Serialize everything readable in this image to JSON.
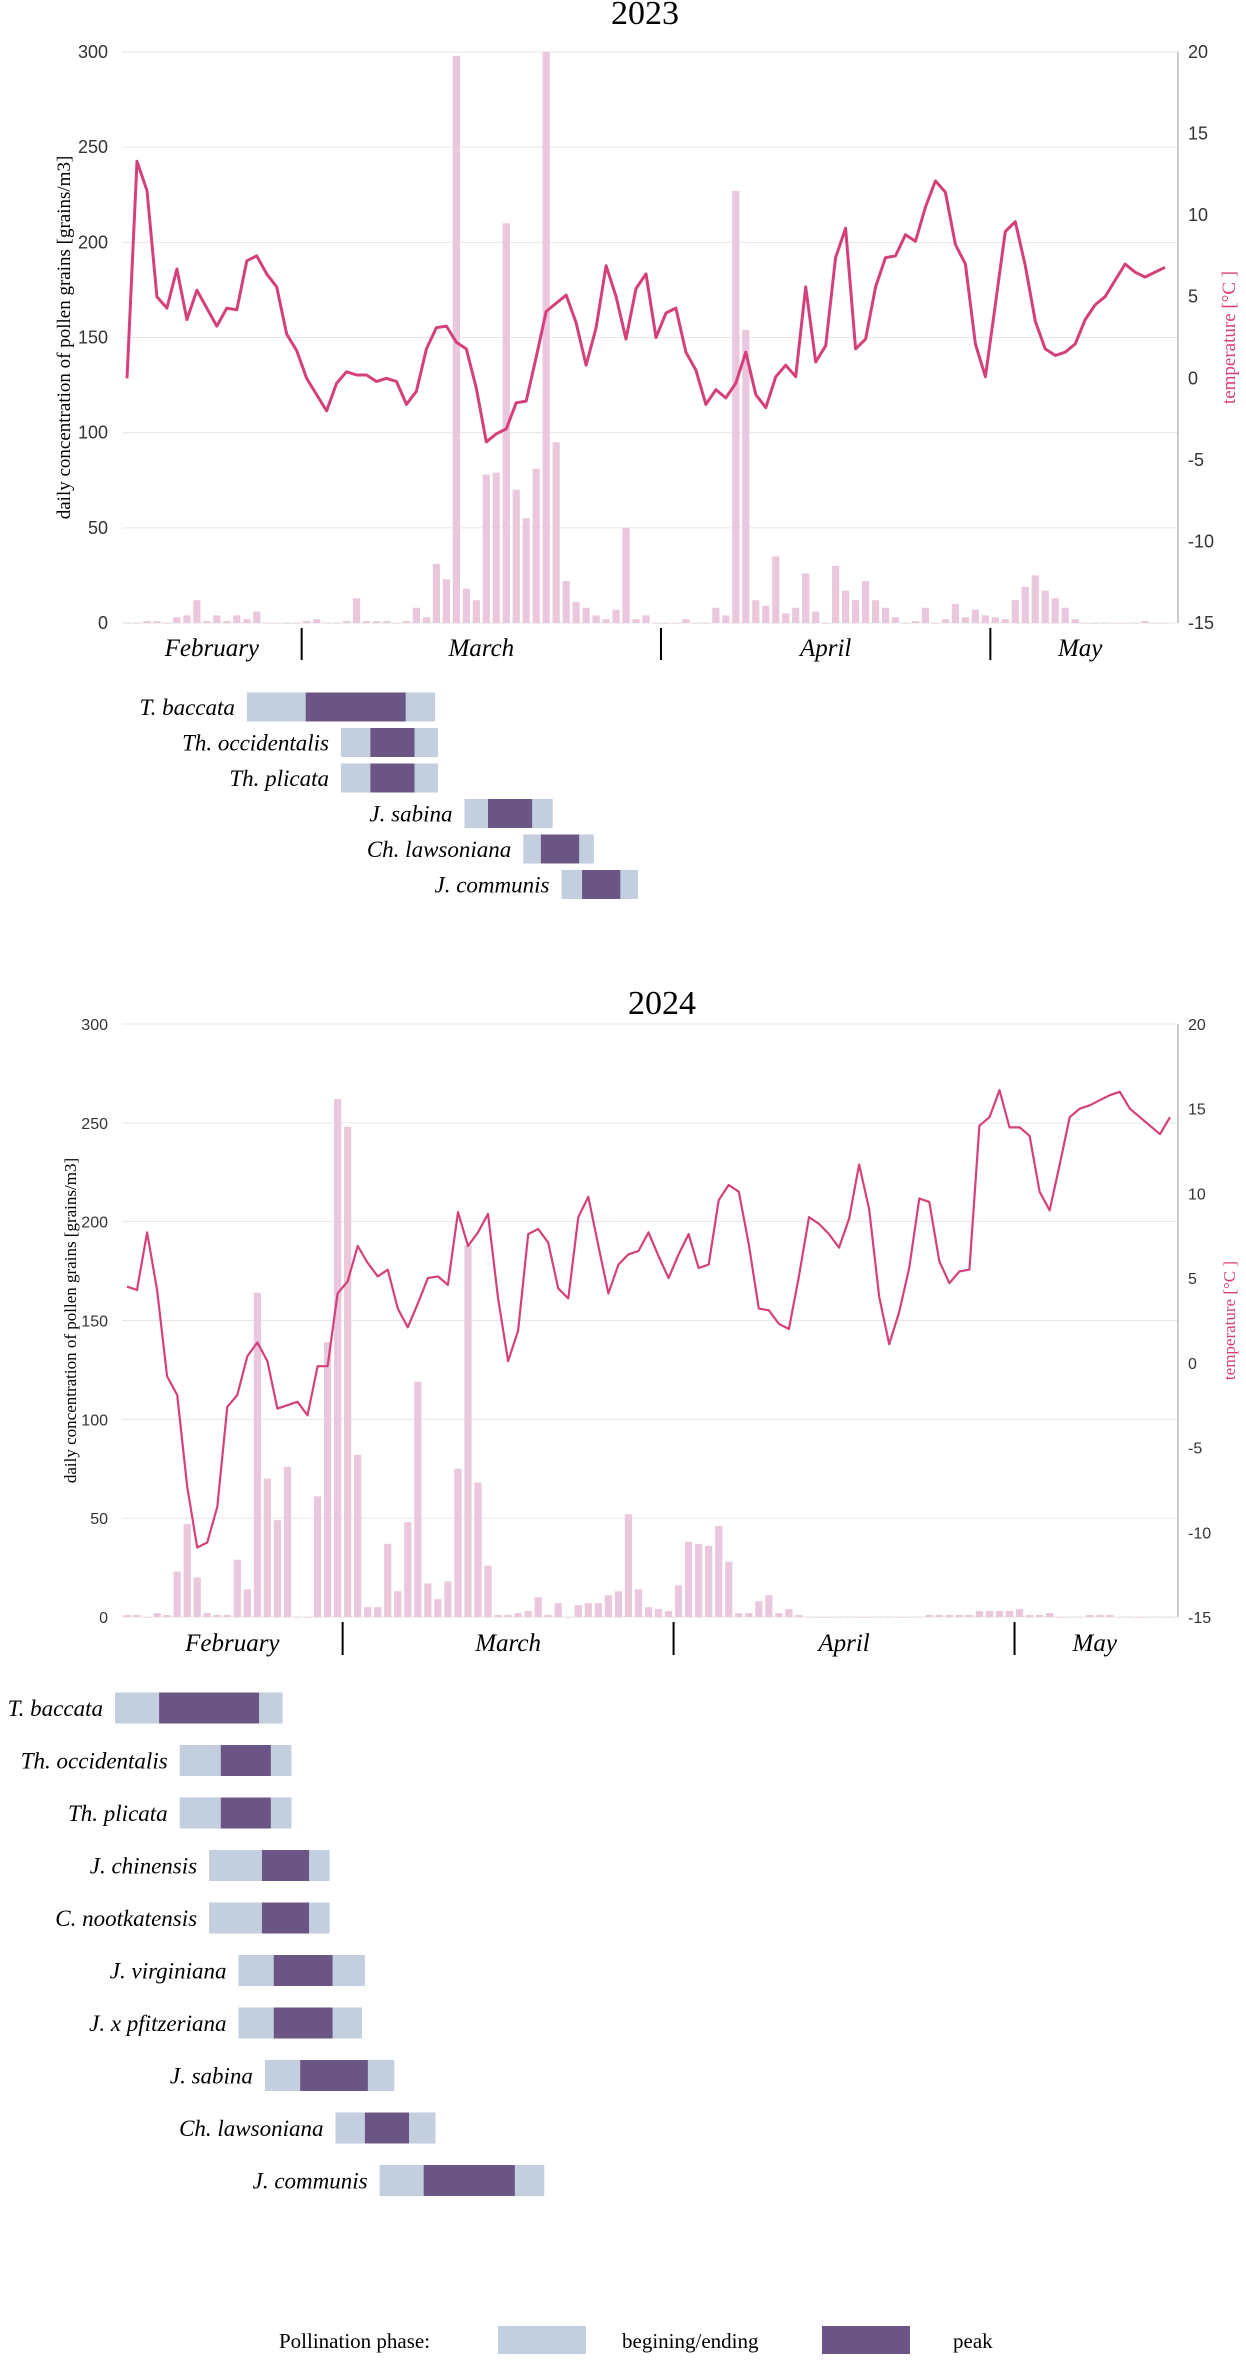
{
  "colors": {
    "bar": "#eac7dc",
    "line": "#d6407a",
    "phase_edge": "#c3cede",
    "phase_peak": "#6b5585",
    "grid": "#e6e6e6",
    "axis_text": "#333333",
    "temp_label": "#d6407a"
  },
  "legend": {
    "prefix": "Pollination phase:",
    "items": [
      {
        "label": "begining/ending",
        "color": "#c3cede"
      },
      {
        "label": "peak",
        "color": "#6b5585"
      }
    ]
  },
  "chart_data": [
    {
      "type": "bar+line",
      "title": "2023",
      "ylabel": "daily concentration of pollen grains [grains/m3]",
      "y2label": "temperature [°C ]",
      "ylim": [
        0,
        300
      ],
      "y2lim": [
        -15,
        20
      ],
      "yticks": [
        0,
        50,
        100,
        150,
        200,
        250,
        300
      ],
      "y2ticks": [
        -15,
        -10,
        -5,
        0,
        5,
        10,
        15,
        20
      ],
      "days": 105,
      "months": [
        {
          "name": "February",
          "start": 0,
          "end": 18
        },
        {
          "name": "March",
          "start": 18,
          "end": 54
        },
        {
          "name": "April",
          "start": 54,
          "end": 87
        },
        {
          "name": "May",
          "start": 87,
          "end": 105
        }
      ],
      "pollen": [
        0,
        0,
        1,
        1,
        0,
        3,
        4,
        12,
        1,
        4,
        1,
        4,
        2,
        6,
        0,
        0,
        0,
        0,
        1,
        2,
        0,
        0,
        1,
        13,
        1,
        1,
        1,
        0,
        1,
        8,
        3,
        31,
        23,
        298,
        18,
        12,
        78,
        79,
        210,
        70,
        55,
        81,
        300,
        95,
        22,
        11,
        8,
        4,
        2,
        7,
        50,
        2,
        4,
        0,
        0,
        0,
        2,
        0,
        0,
        8,
        4,
        227,
        154,
        12,
        9,
        35,
        5,
        8,
        26,
        6,
        0,
        30,
        17,
        12,
        22,
        12,
        8,
        3,
        0,
        1,
        8,
        0,
        2,
        10,
        3,
        7,
        4,
        3,
        2,
        12,
        19,
        25,
        17,
        13,
        8,
        2,
        0,
        0,
        0,
        0,
        0,
        0,
        1,
        0,
        0
      ],
      "temperature": [
        0,
        13.3,
        11.5,
        5,
        4.3,
        6.7,
        3.6,
        5.4,
        4.3,
        3.2,
        4.3,
        4.2,
        7.2,
        7.5,
        6.4,
        5.6,
        2.7,
        1.7,
        0,
        -1,
        -2,
        -0.3,
        0.4,
        0.2,
        0.2,
        -0.2,
        0,
        -0.2,
        -1.6,
        -0.8,
        1.8,
        3.1,
        3.2,
        2.2,
        1.8,
        -0.6,
        -3.9,
        -3.4,
        -3.1,
        -1.5,
        -1.4,
        1.3,
        4.1,
        4.6,
        5.1,
        3.4,
        0.8,
        3.1,
        6.9,
        5,
        2.4,
        5.5,
        6.4,
        2.5,
        4,
        4.3,
        1.6,
        0.5,
        -1.6,
        -0.7,
        -1.2,
        -0.3,
        1.6,
        -1,
        -1.8,
        0.1,
        0.8,
        0.1,
        5.6,
        1,
        2,
        7.4,
        9.2,
        1.8,
        2.4,
        5.6,
        7.4,
        7.5,
        8.8,
        8.4,
        10.5,
        12.1,
        11.4,
        8.2,
        7,
        2.1,
        0.1,
        4.5,
        9,
        9.6,
        6.9,
        3.5,
        1.8,
        1.4,
        1.6,
        2.1,
        3.6,
        4.5,
        5,
        6,
        7,
        6.5,
        6.2,
        6.5,
        6.8
      ],
      "species": [
        {
          "name": "T. baccata",
          "begin": 18,
          "peak_start": 38,
          "peak_end": 72,
          "end": 82
        },
        {
          "name": "Th. occidentalis",
          "begin": 50,
          "peak_start": 60,
          "peak_end": 75,
          "end": 83
        },
        {
          "name": "Th. plicata",
          "begin": 50,
          "peak_start": 60,
          "peak_end": 75,
          "end": 83
        },
        {
          "name": "J. sabina",
          "begin": 92,
          "peak_start": 100,
          "peak_end": 115,
          "end": 122
        },
        {
          "name": "Ch. lawsoniana",
          "begin": 112,
          "peak_start": 118,
          "peak_end": 131,
          "end": 136
        },
        {
          "name": "J. communis",
          "begin": 125,
          "peak_start": 132,
          "peak_end": 145,
          "end": 151
        }
      ]
    },
    {
      "type": "bar+line",
      "title": "2024",
      "ylabel": "daily concentration of pollen grains [grains/m3]",
      "y2label": "temperature [°C ]",
      "ylim": [
        0,
        300
      ],
      "y2lim": [
        -15,
        20
      ],
      "yticks": [
        0,
        50,
        100,
        150,
        200,
        250,
        300
      ],
      "y2ticks": [
        -15,
        -10,
        -5,
        0,
        5,
        10,
        15,
        20
      ],
      "days": 105,
      "months": [
        {
          "name": "February",
          "start": 0,
          "end": 22
        },
        {
          "name": "March",
          "start": 22,
          "end": 55
        },
        {
          "name": "April",
          "start": 55,
          "end": 89
        },
        {
          "name": "May",
          "start": 89,
          "end": 105
        }
      ],
      "pollen": [
        1,
        1,
        0,
        2,
        1,
        23,
        47,
        20,
        2,
        1,
        1,
        29,
        14,
        164,
        70,
        49,
        76,
        0,
        0,
        61,
        139,
        262,
        248,
        82,
        5,
        5,
        37,
        13,
        48,
        119,
        17,
        9,
        18,
        75,
        188,
        68,
        26,
        1,
        1,
        2,
        3,
        10,
        1,
        7,
        0,
        6,
        7,
        7,
        11,
        13,
        52,
        14,
        5,
        4,
        3,
        16,
        38,
        37,
        36,
        46,
        28,
        2,
        2,
        8,
        11,
        2,
        4,
        1,
        0,
        0,
        0,
        0,
        0,
        0,
        0,
        0,
        0,
        0,
        0,
        0,
        1,
        1,
        1,
        1,
        1,
        3,
        3,
        3,
        3,
        4,
        1,
        1,
        2,
        0,
        0,
        0,
        1,
        1,
        1,
        0,
        0,
        0,
        0,
        0,
        0
      ],
      "temperature": [
        4.5,
        4.3,
        7.7,
        4.3,
        -0.8,
        -1.9,
        -7.3,
        -10.9,
        -10.6,
        -8.5,
        -2.6,
        -1.9,
        0.4,
        1.2,
        0.1,
        -2.7,
        -2.5,
        -2.3,
        -3.1,
        -0.2,
        -0.2,
        4.1,
        4.8,
        6.9,
        5.9,
        5.1,
        5.5,
        3.2,
        2.1,
        3.5,
        5,
        5.1,
        4.6,
        8.9,
        6.9,
        7.7,
        8.8,
        3.8,
        0.1,
        1.9,
        7.6,
        7.9,
        7.1,
        4.4,
        3.8,
        8.6,
        9.8,
        6.9,
        4.1,
        5.8,
        6.4,
        6.6,
        7.7,
        6.3,
        5,
        6.4,
        7.6,
        5.6,
        5.8,
        9.6,
        10.5,
        10.1,
        7,
        3.2,
        3.1,
        2.3,
        2,
        5.1,
        8.6,
        8.2,
        7.6,
        6.8,
        8.5,
        11.7,
        9.1,
        3.9,
        1.1,
        3,
        5.6,
        9.7,
        9.5,
        6,
        4.7,
        5.4,
        5.5,
        14,
        14.5,
        16.1,
        13.9,
        13.9,
        13.4,
        10.1,
        9,
        11.7,
        14.5,
        15,
        15.2,
        15.5,
        15.8,
        16,
        15,
        14.5,
        14,
        13.5,
        14.5
      ],
      "species": [
        {
          "name": "T. baccata",
          "begin": 0,
          "peak_start": 15,
          "peak_end": 49,
          "end": 57
        },
        {
          "name": "Th. occidentalis",
          "begin": 22,
          "peak_start": 36,
          "peak_end": 53,
          "end": 60
        },
        {
          "name": "Th. plicata",
          "begin": 22,
          "peak_start": 36,
          "peak_end": 53,
          "end": 60
        },
        {
          "name": "J. chinensis",
          "begin": 32,
          "peak_start": 50,
          "peak_end": 66,
          "end": 73
        },
        {
          "name": "C. nootkatensis",
          "begin": 32,
          "peak_start": 50,
          "peak_end": 66,
          "end": 73
        },
        {
          "name": "J. virginiana",
          "begin": 42,
          "peak_start": 54,
          "peak_end": 74,
          "end": 85
        },
        {
          "name": "J. x pfitzeriana",
          "begin": 42,
          "peak_start": 54,
          "peak_end": 74,
          "end": 84
        },
        {
          "name": "J. sabina",
          "begin": 51,
          "peak_start": 63,
          "peak_end": 86,
          "end": 95
        },
        {
          "name": "Ch. lawsoniana",
          "begin": 75,
          "peak_start": 85,
          "peak_end": 100,
          "end": 109
        },
        {
          "name": "J. communis",
          "begin": 90,
          "peak_start": 105,
          "peak_end": 136,
          "end": 146
        }
      ]
    }
  ]
}
